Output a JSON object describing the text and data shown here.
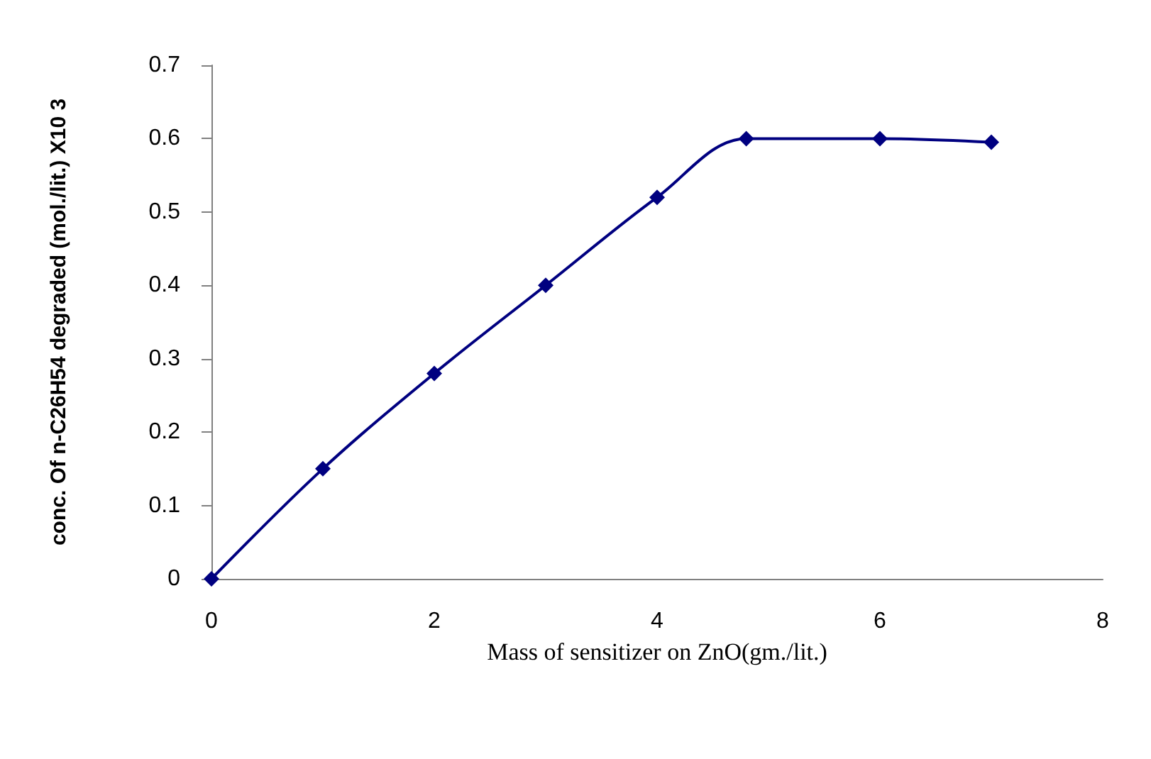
{
  "chart_data": {
    "type": "line",
    "xlabel": "Mass of sensitizer on ZnO(gm./lit.)",
    "ylabel": "conc. Of n-C26H54 degraded (mol./lit.) X10 3",
    "x": [
      0,
      1,
      2,
      3,
      4,
      4.8,
      6,
      7
    ],
    "series": [
      {
        "color": "#000080",
        "values": [
          0,
          0.15,
          0.28,
          0.4,
          0.52,
          0.6,
          0.6,
          0.595
        ]
      }
    ],
    "xlim": [
      0,
      8
    ],
    "xticks": [
      0,
      2,
      4,
      6,
      8
    ],
    "ylim": [
      0,
      0.7
    ],
    "yticks": [
      0,
      0.1,
      0.2,
      0.3,
      0.4,
      0.5,
      0.6,
      0.7
    ],
    "marker": "diamond",
    "line_style": "solid"
  }
}
